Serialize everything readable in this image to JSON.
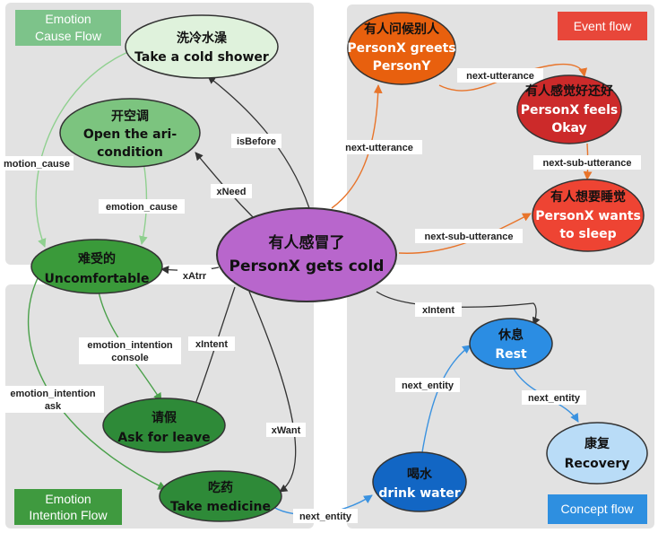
{
  "panels": {
    "cause": {
      "title": [
        "Emotion",
        "Cause Flow"
      ],
      "color": "#7dc38a"
    },
    "event": {
      "title": [
        "Event flow"
      ],
      "color": "#e8473a"
    },
    "intention": {
      "title": [
        "Emotion",
        "Intention Flow"
      ],
      "color": "#3f9a3f"
    },
    "concept": {
      "title": [
        "Concept flow"
      ],
      "color": "#2e8fe0"
    }
  },
  "nodes": {
    "center": {
      "zh": "有人感冒了",
      "en": "PersonX gets cold",
      "fill": "#b866cc",
      "stroke": "#333333"
    },
    "cold_shower": {
      "zh": "洗冷水澡",
      "en": "Take a cold shower",
      "fill": "#dff2dc",
      "stroke": "#333333"
    },
    "aircon": {
      "zh": "开空调",
      "en1": "Open the ari-",
      "en2": "condition",
      "fill": "#7cc47f",
      "stroke": "#333333"
    },
    "uncomfortable": {
      "zh": "难受的",
      "en": "Uncomfortable",
      "fill": "#3a9a3a",
      "stroke": "#333333"
    },
    "ask_leave": {
      "zh": "请假",
      "en": "Ask for leave",
      "fill": "#2e8a38",
      "stroke": "#333333"
    },
    "medicine": {
      "zh": "吃药",
      "en": "Take medicine",
      "fill": "#2e8a38",
      "stroke": "#333333"
    },
    "greets": {
      "zh": "有人问候别人",
      "en1": "PersonX greets",
      "en2": "PersonY",
      "fill": "#e8600e",
      "stroke": "#333333"
    },
    "feels_okay": {
      "zh": "有人感觉好还好",
      "en1": "PersonX feels",
      "en2": "Okay",
      "fill": "#cc2a2a",
      "stroke": "#333333"
    },
    "sleep": {
      "zh": "有人想要睡觉",
      "en1": "PersonX wants",
      "en2": "to sleep",
      "fill": "#ee4433",
      "stroke": "#333333"
    },
    "rest": {
      "zh": "休息",
      "en": "Rest",
      "fill": "#2b8de3",
      "stroke": "#333333"
    },
    "recovery": {
      "zh": "康复",
      "en": "Recovery",
      "fill": "#b9dcf7",
      "stroke": "#333333"
    },
    "drink_water": {
      "zh": "喝水",
      "en": "drink water",
      "fill": "#1266c4",
      "stroke": "#333333"
    }
  },
  "edges": {
    "isBefore": "isBefore",
    "xNeed": "xNeed",
    "xAtrr": "xAtrr",
    "xIntent_ask": "xIntent",
    "xWant": "xWant",
    "xIntent_rest": "xIntent",
    "motion_cause": "motion_cause",
    "emotion_cause": "emotion_cause",
    "emotion_intention_console": [
      "emotion_intention",
      "console"
    ],
    "emotion_intention_ask": [
      "emotion_intention",
      "ask"
    ],
    "next_utterance_1": "next-utterance",
    "next_utterance_2": "next-utterance",
    "next_sub_utterance_1": "next-sub-utterance",
    "next_sub_utterance_2": "next-sub-utterance",
    "next_entity_1": "next_entity",
    "next_entity_2": "next_entity",
    "next_entity_3": "next_entity"
  }
}
